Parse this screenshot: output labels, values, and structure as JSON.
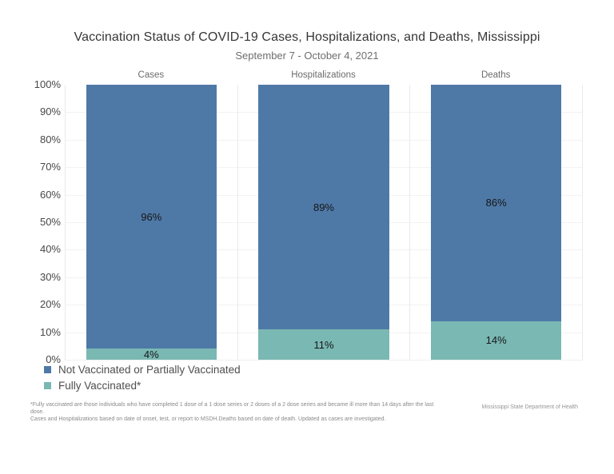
{
  "header": {
    "title": "Vaccination Status of COVID-19 Cases, Hospitalizations, and Deaths, Mississippi",
    "subtitle": "September 7 - October 4, 2021"
  },
  "chart_data": {
    "type": "bar",
    "subtype": "100%-stacked-column",
    "title": "Vaccination Status of COVID-19 Cases, Hospitalizations, and Deaths, Mississippi",
    "subtitle": "September 7 - October 4, 2021",
    "categories": [
      "Cases",
      "Hospitalizations",
      "Deaths"
    ],
    "series": [
      {
        "name": "Not Vaccinated or Partially Vaccinated",
        "color": "#4e79a7",
        "values": [
          96,
          89,
          86
        ],
        "labels": [
          "96%",
          "89%",
          "86%"
        ]
      },
      {
        "name": "Fully Vaccinated*",
        "color": "#7ab8b3",
        "values": [
          4,
          11,
          14
        ],
        "labels": [
          "4%",
          "11%",
          "14%"
        ]
      }
    ],
    "y_axis": {
      "min": 0,
      "max": 100,
      "tick_step": 10,
      "tick_labels": [
        "100%",
        "90%",
        "80%",
        "70%",
        "60%",
        "50%",
        "40%",
        "30%",
        "20%",
        "10%",
        "0%"
      ],
      "grid": true
    },
    "legend_position": "bottom-left"
  },
  "footnote": {
    "line1": "*Fully vaccinated are those individuals who have completed 1 dose of a 1 dose series or 2 doses of a 2 dose series and became ill more than 14 days after the last dose.",
    "line2": "Cases and Hospitalizations based on date of onset, test, or report to MSDH.Deaths based on date of death. Updated as cases are investigated."
  },
  "attribution": "Mississippi State Department of Health"
}
